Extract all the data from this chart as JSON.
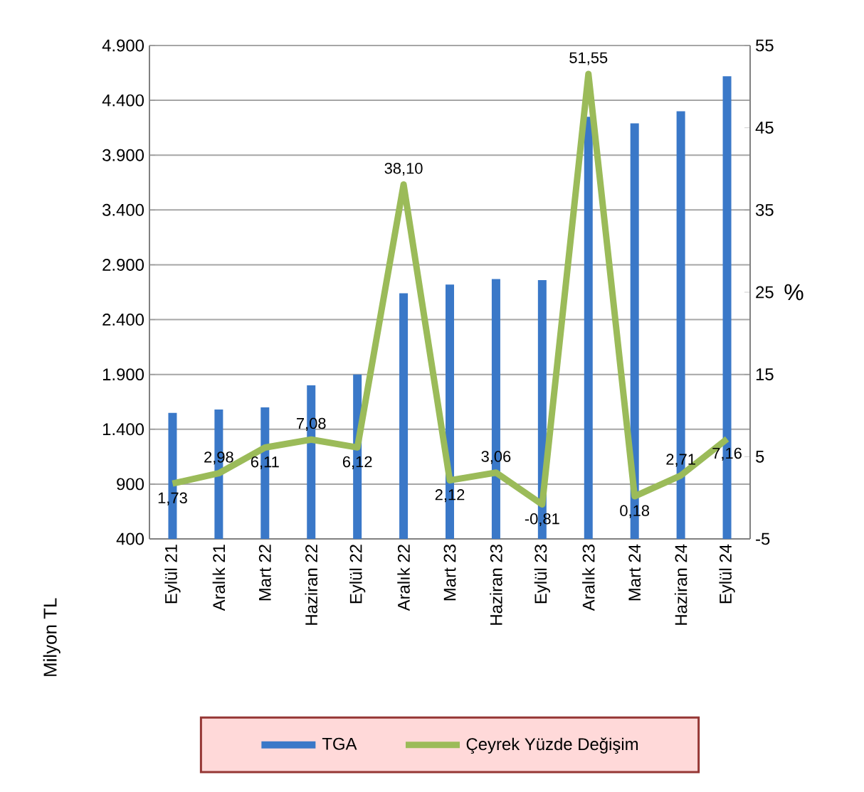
{
  "chart_data": {
    "type": "bar",
    "ylabel": "Milyon TL",
    "y2label": "%",
    "categories": [
      "Eylül 21",
      "Aralık 21",
      "Mart 22",
      "Haziran 22",
      "Eylül 22",
      "Aralık 22",
      "Mart 23",
      "Haziran 23",
      "Eylül 23",
      "Aralık 23",
      "Mart 24",
      "Haziran 24",
      "Eylül 24"
    ],
    "series": [
      {
        "name": "TGA",
        "color": "#3a78c8",
        "values": [
          1550,
          1580,
          1600,
          1800,
          1900,
          2640,
          2720,
          2770,
          2760,
          4250,
          4190,
          4300,
          4620
        ]
      },
      {
        "name": "Çeyrek Yüzde Değişim",
        "type": "line",
        "axis": "y2",
        "color": "#9bbb59",
        "line_style": "solid",
        "values": [
          1.73,
          2.98,
          6.11,
          7.08,
          6.12,
          38.1,
          2.12,
          3.06,
          -0.81,
          51.55,
          0.18,
          2.71,
          7.16
        ],
        "value_labels": [
          "1,73",
          "2,98",
          "6,11",
          "7,08",
          "6,12",
          "38,10",
          "2,12",
          "3,06",
          "-0,81",
          "51,55",
          "0,18",
          "2,71",
          "7,16"
        ]
      }
    ],
    "ylim": [
      400,
      4900
    ],
    "yticks": [
      400,
      900,
      {
        "value": 1400,
        "label": "1.400"
      },
      {
        "value": 1900,
        "label": "1.900"
      },
      {
        "value": 2400,
        "label": "2.400"
      },
      {
        "value": 2900,
        "label": "2.900"
      },
      {
        "value": 3400,
        "label": "3.400"
      },
      {
        "value": 3900,
        "label": "3.900"
      },
      {
        "value": 4400,
        "label": "4.400"
      },
      {
        "value": 4900,
        "label": "4.900"
      }
    ],
    "y2lim": [
      -5,
      55
    ],
    "y2ticks": [
      -5,
      5,
      15,
      25,
      35,
      45,
      55
    ],
    "grid": "y",
    "legend": "bottom"
  }
}
